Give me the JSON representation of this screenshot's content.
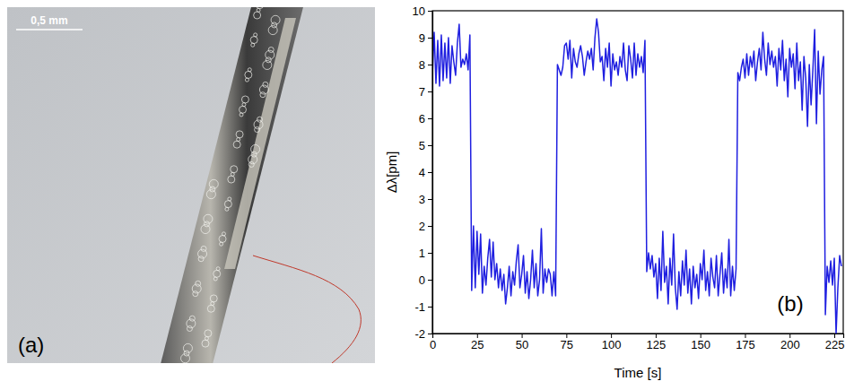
{
  "chart_data": {
    "type": "line",
    "color": "#1f1fe0",
    "x_label": "Time [s]",
    "y_label": "Δλ[pm]",
    "annotations": [
      "(b)"
    ],
    "xlim": [
      0,
      230
    ],
    "xticks": [
      0,
      25,
      50,
      75,
      100,
      125,
      150,
      175,
      200,
      225
    ],
    "ylim": [
      -2,
      10
    ],
    "yticks": [
      -2,
      -1,
      0,
      1,
      2,
      3,
      4,
      5,
      6,
      7,
      8,
      9,
      10
    ],
    "x": [
      0,
      1,
      2,
      3,
      4,
      5,
      6,
      7,
      8,
      9,
      10,
      11,
      12,
      13,
      14,
      15,
      16,
      17,
      18,
      19,
      20,
      21,
      22,
      23,
      24,
      25,
      26,
      27,
      28,
      29,
      30,
      31,
      32,
      33,
      34,
      35,
      36,
      37,
      38,
      39,
      40,
      41,
      42,
      43,
      44,
      45,
      46,
      47,
      48,
      49,
      50,
      51,
      52,
      53,
      54,
      55,
      56,
      57,
      58,
      59,
      60,
      61,
      62,
      63,
      64,
      65,
      66,
      67,
      68,
      69,
      70,
      71,
      72,
      73,
      74,
      75,
      76,
      77,
      78,
      79,
      80,
      81,
      82,
      83,
      84,
      85,
      86,
      87,
      88,
      89,
      90,
      91,
      92,
      93,
      94,
      95,
      96,
      97,
      98,
      99,
      100,
      101,
      102,
      103,
      104,
      105,
      106,
      107,
      108,
      109,
      110,
      111,
      112,
      113,
      114,
      115,
      116,
      117,
      118,
      119,
      120,
      121,
      122,
      123,
      124,
      125,
      126,
      127,
      128,
      129,
      130,
      131,
      132,
      133,
      134,
      135,
      136,
      137,
      138,
      139,
      140,
      141,
      142,
      143,
      144,
      145,
      146,
      147,
      148,
      149,
      150,
      151,
      152,
      153,
      154,
      155,
      156,
      157,
      158,
      159,
      160,
      161,
      162,
      163,
      164,
      165,
      166,
      167,
      168,
      169,
      170,
      171,
      172,
      173,
      174,
      175,
      176,
      177,
      178,
      179,
      180,
      181,
      182,
      183,
      184,
      185,
      186,
      187,
      188,
      189,
      190,
      191,
      192,
      193,
      194,
      195,
      196,
      197,
      198,
      199,
      200,
      201,
      202,
      203,
      204,
      205,
      206,
      207,
      208,
      209,
      210,
      211,
      212,
      213,
      214,
      215,
      216,
      217,
      218,
      219,
      220,
      221,
      222,
      223,
      224,
      225,
      226,
      227,
      228,
      229
    ],
    "values": [
      7.6,
      9.2,
      7.3,
      8.9,
      7.2,
      9.1,
      7.4,
      8.8,
      7.5,
      9.0,
      7.3,
      8.7,
      8.1,
      7.6,
      8.8,
      9.5,
      7.9,
      8.2,
      8.0,
      8.4,
      7.8,
      9.1,
      -0.4,
      2.0,
      -0.3,
      1.8,
      0.2,
      1.7,
      -0.5,
      0.5,
      -0.2,
      0.8,
      1.5,
      0.1,
      1.4,
      0.0,
      0.6,
      -0.3,
      0.4,
      -0.4,
      0.2,
      -0.9,
      -0.3,
      0.5,
      -0.6,
      0.3,
      -0.2,
      0.7,
      1.3,
      -0.3,
      0.2,
      0.9,
      -0.5,
      0.3,
      -0.7,
      0.0,
      1.1,
      -0.3,
      0.6,
      -0.6,
      0.0,
      1.9,
      -0.5,
      0.4,
      -0.1,
      0.4,
      0.2,
      -0.6,
      0.3,
      -0.6,
      8.0,
      7.8,
      7.6,
      7.9,
      8.7,
      8.8,
      8.2,
      8.9,
      7.5,
      8.6,
      8.1,
      7.9,
      8.4,
      8.7,
      8.3,
      7.6,
      8.1,
      8.5,
      8.2,
      8.6,
      7.8,
      9.0,
      9.7,
      9.2,
      8.1,
      8.3,
      7.4,
      8.6,
      7.9,
      8.8,
      7.2,
      8.4,
      7.8,
      8.1,
      7.6,
      8.3,
      7.9,
      8.8,
      7.8,
      7.4,
      8.7,
      8.2,
      7.5,
      8.8,
      7.6,
      8.4,
      7.9,
      8.3,
      7.7,
      8.9,
      0.3,
      1.0,
      0.4,
      0.9,
      0.1,
      0.6,
      -0.7,
      0.8,
      -0.4,
      1.8,
      -0.1,
      0.5,
      -0.9,
      0.8,
      -0.2,
      1.7,
      -0.3,
      -1.1,
      0.3,
      -0.6,
      0.7,
      -0.2,
      1.1,
      -0.5,
      0.4,
      -0.9,
      0.5,
      -0.3,
      0.2,
      -0.7,
      0.6,
      0.0,
      1.1,
      -0.4,
      0.3,
      -0.6,
      0.8,
      0.1,
      -0.3,
      0.9,
      -0.6,
      0.2,
      1.0,
      -0.5,
      0.4,
      -0.3,
      1.5,
      -0.6,
      0.5,
      -0.4,
      0.4,
      7.7,
      7.4,
      7.9,
      8.2,
      7.5,
      8.4,
      7.6,
      8.3,
      7.9,
      8.5,
      7.4,
      8.1,
      8.6,
      7.8,
      9.2,
      8.2,
      7.6,
      8.8,
      8.0,
      8.5,
      7.9,
      8.3,
      7.2,
      8.6,
      7.8,
      8.9,
      7.4,
      8.2,
      6.8,
      8.6,
      7.9,
      8.4,
      7.1,
      8.8,
      7.4,
      8.1,
      6.3,
      8.3,
      7.5,
      5.7,
      8.0,
      6.5,
      7.8,
      9.3,
      5.8,
      8.5,
      6.9,
      7.8,
      8.3,
      -1.3,
      0.5,
      -0.1,
      0.7,
      -0.2,
      0.8,
      -2.0,
      -0.3,
      0.9,
      0.5
    ]
  },
  "photo": {
    "scale_bar": "0,5 mm",
    "label": "(a)"
  }
}
